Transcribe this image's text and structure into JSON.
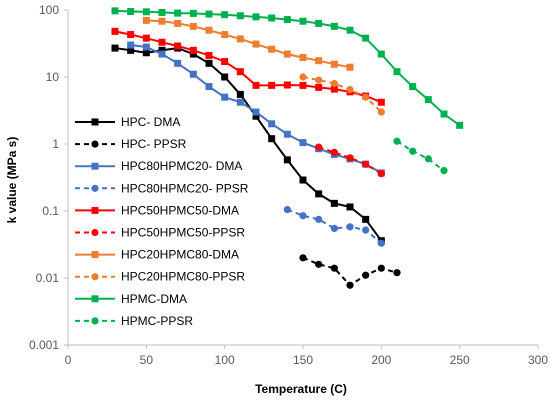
{
  "chart_data": {
    "type": "line",
    "title": "",
    "xlabel": "Temperature (C)",
    "ylabel": "k value (MPa s)",
    "xlim": [
      0,
      300
    ],
    "ylim": [
      0.001,
      100
    ],
    "y_scale": "log",
    "x_ticks": [
      0,
      50,
      100,
      150,
      200,
      250,
      300
    ],
    "y_ticks": [
      0.001,
      0.01,
      0.1,
      1,
      10,
      100
    ],
    "y_tick_labels": [
      "0.001",
      "0.01",
      "0.1",
      "1",
      "10",
      "100"
    ],
    "grid": false,
    "legend_position": "left",
    "series": [
      {
        "name": "HPC- DMA",
        "color": "#000000",
        "dash": "solid",
        "marker": "square",
        "x": [
          30,
          40,
          50,
          60,
          70,
          80,
          90,
          100,
          110,
          120,
          130,
          140,
          150,
          160,
          170,
          180,
          190,
          200
        ],
        "y": [
          27,
          25,
          23,
          25,
          27,
          22,
          16,
          10,
          5.5,
          2.6,
          1.2,
          0.58,
          0.29,
          0.18,
          0.13,
          0.115,
          0.075,
          0.036
        ]
      },
      {
        "name": "HPC- PPSR",
        "color": "#000000",
        "dash": "dashed",
        "marker": "circle",
        "x": [
          150,
          160,
          170,
          180,
          190,
          200,
          210
        ],
        "y": [
          0.02,
          0.016,
          0.014,
          0.0078,
          0.011,
          0.014,
          0.012
        ]
      },
      {
        "name": "HPC80HPMC20- DMA",
        "color": "#4472C4",
        "dash": "solid",
        "marker": "square",
        "x": [
          40,
          50,
          60,
          70,
          80,
          90,
          100,
          110,
          120,
          130,
          140,
          150,
          160,
          170,
          180,
          190,
          200
        ],
        "y": [
          30,
          28,
          22,
          16,
          11,
          7.2,
          5,
          4.2,
          3,
          2,
          1.4,
          1.05,
          0.85,
          0.7,
          0.6,
          0.5,
          0.37
        ]
      },
      {
        "name": "HPC80HPMC20- PPSR",
        "color": "#4472C4",
        "dash": "dashed",
        "marker": "circle",
        "x": [
          140,
          150,
          160,
          170,
          180,
          190,
          200
        ],
        "y": [
          0.105,
          0.085,
          0.075,
          0.055,
          0.058,
          0.052,
          0.033
        ]
      },
      {
        "name": "HPC50HPMC50-DMA",
        "color": "#FF0000",
        "dash": "solid",
        "marker": "square",
        "x": [
          30,
          40,
          50,
          60,
          70,
          80,
          90,
          100,
          110,
          120,
          130,
          140,
          150,
          160,
          170,
          180,
          190,
          200
        ],
        "y": [
          48,
          43,
          38,
          33,
          29,
          25,
          21,
          17,
          12,
          7.5,
          7.5,
          7.6,
          7.5,
          7,
          6.6,
          6,
          5.2,
          4.2
        ]
      },
      {
        "name": "HPC50HPMC50-PPSR",
        "color": "#FF0000",
        "dash": "dashed",
        "marker": "circle",
        "x": [
          160,
          170,
          180,
          190,
          200
        ],
        "y": [
          0.9,
          0.75,
          0.62,
          0.5,
          0.36
        ]
      },
      {
        "name": "HPC20HPMC80-DMA",
        "color": "#ED7D31",
        "dash": "solid",
        "marker": "square",
        "x": [
          50,
          60,
          70,
          80,
          90,
          100,
          110,
          120,
          130,
          140,
          150,
          160,
          170,
          180
        ],
        "y": [
          70,
          68,
          63,
          57,
          50,
          43,
          37,
          31,
          26,
          22,
          19.5,
          17.5,
          15.5,
          14
        ]
      },
      {
        "name": "HPC20HPMC80-PPSR",
        "color": "#ED7D31",
        "dash": "dashed",
        "marker": "circle",
        "x": [
          150,
          160,
          170,
          180,
          190,
          200
        ],
        "y": [
          10,
          9,
          8,
          6.5,
          5,
          3
        ]
      },
      {
        "name": "HPMC-DMA",
        "color": "#00B050",
        "dash": "solid",
        "marker": "square",
        "x": [
          30,
          40,
          50,
          60,
          70,
          80,
          90,
          100,
          110,
          120,
          130,
          140,
          150,
          160,
          170,
          180,
          190,
          200,
          210,
          220,
          230,
          240,
          250
        ],
        "y": [
          97,
          95,
          94,
          92,
          90,
          89,
          87,
          85,
          82,
          79,
          76,
          72,
          68,
          63,
          57,
          50,
          38,
          22,
          12,
          7.2,
          4.6,
          2.8,
          1.9
        ]
      },
      {
        "name": "HPMC-PPSR",
        "color": "#00B050",
        "dash": "dashed",
        "marker": "circle",
        "x": [
          210,
          220,
          230,
          240
        ],
        "y": [
          1.1,
          0.78,
          0.6,
          0.4
        ]
      }
    ]
  }
}
